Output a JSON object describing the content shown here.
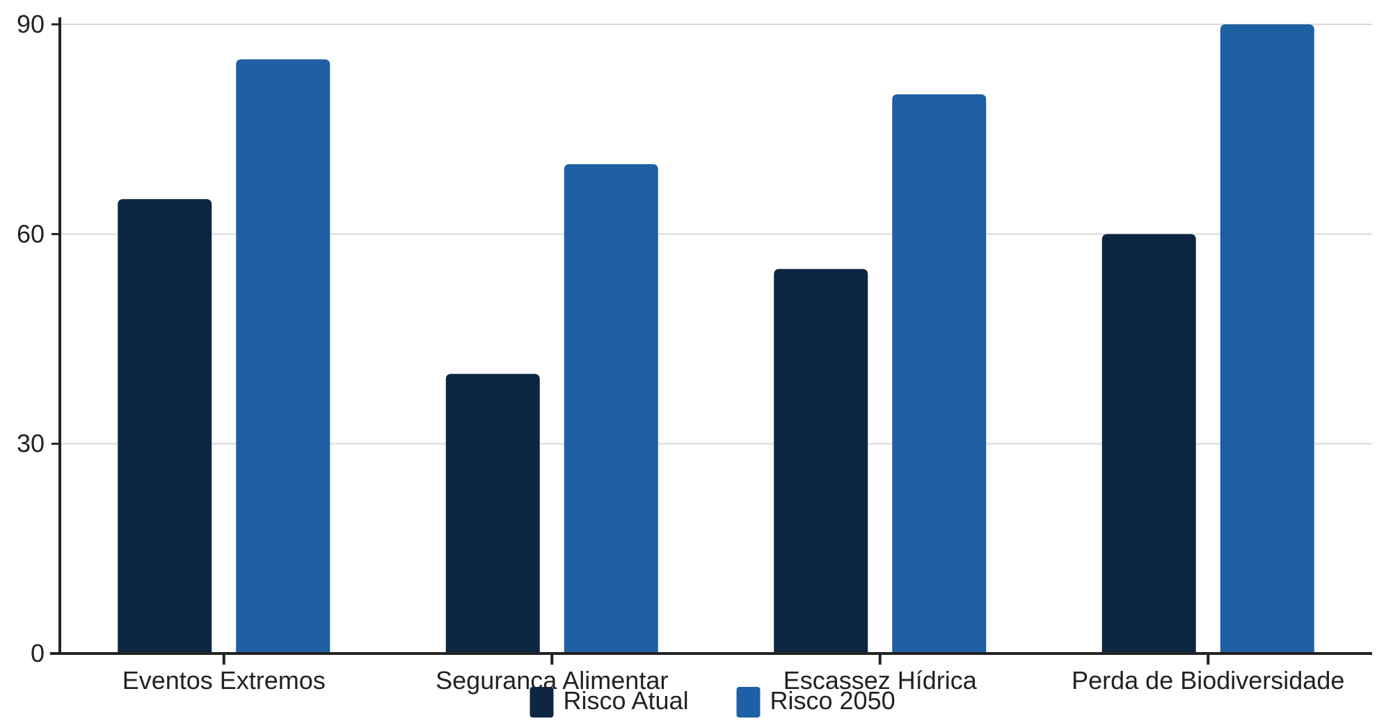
{
  "chart_data": {
    "type": "bar",
    "categories": [
      "Eventos Extremos",
      "Segurança Alimentar",
      "Escassez Hídrica",
      "Perda de Biodiversidade"
    ],
    "series": [
      {
        "name": "Risco Atual",
        "values": [
          65,
          40,
          55,
          60
        ],
        "color": "#0d2742"
      },
      {
        "name": "Risco 2050",
        "values": [
          85,
          70,
          80,
          90
        ],
        "color": "#1f5fa3"
      }
    ],
    "ylim": [
      0,
      90
    ],
    "yticks": [
      0,
      30,
      60,
      90
    ],
    "grid": true,
    "legend_position": "bottom-center",
    "title": "",
    "xlabel": "",
    "ylabel": ""
  }
}
